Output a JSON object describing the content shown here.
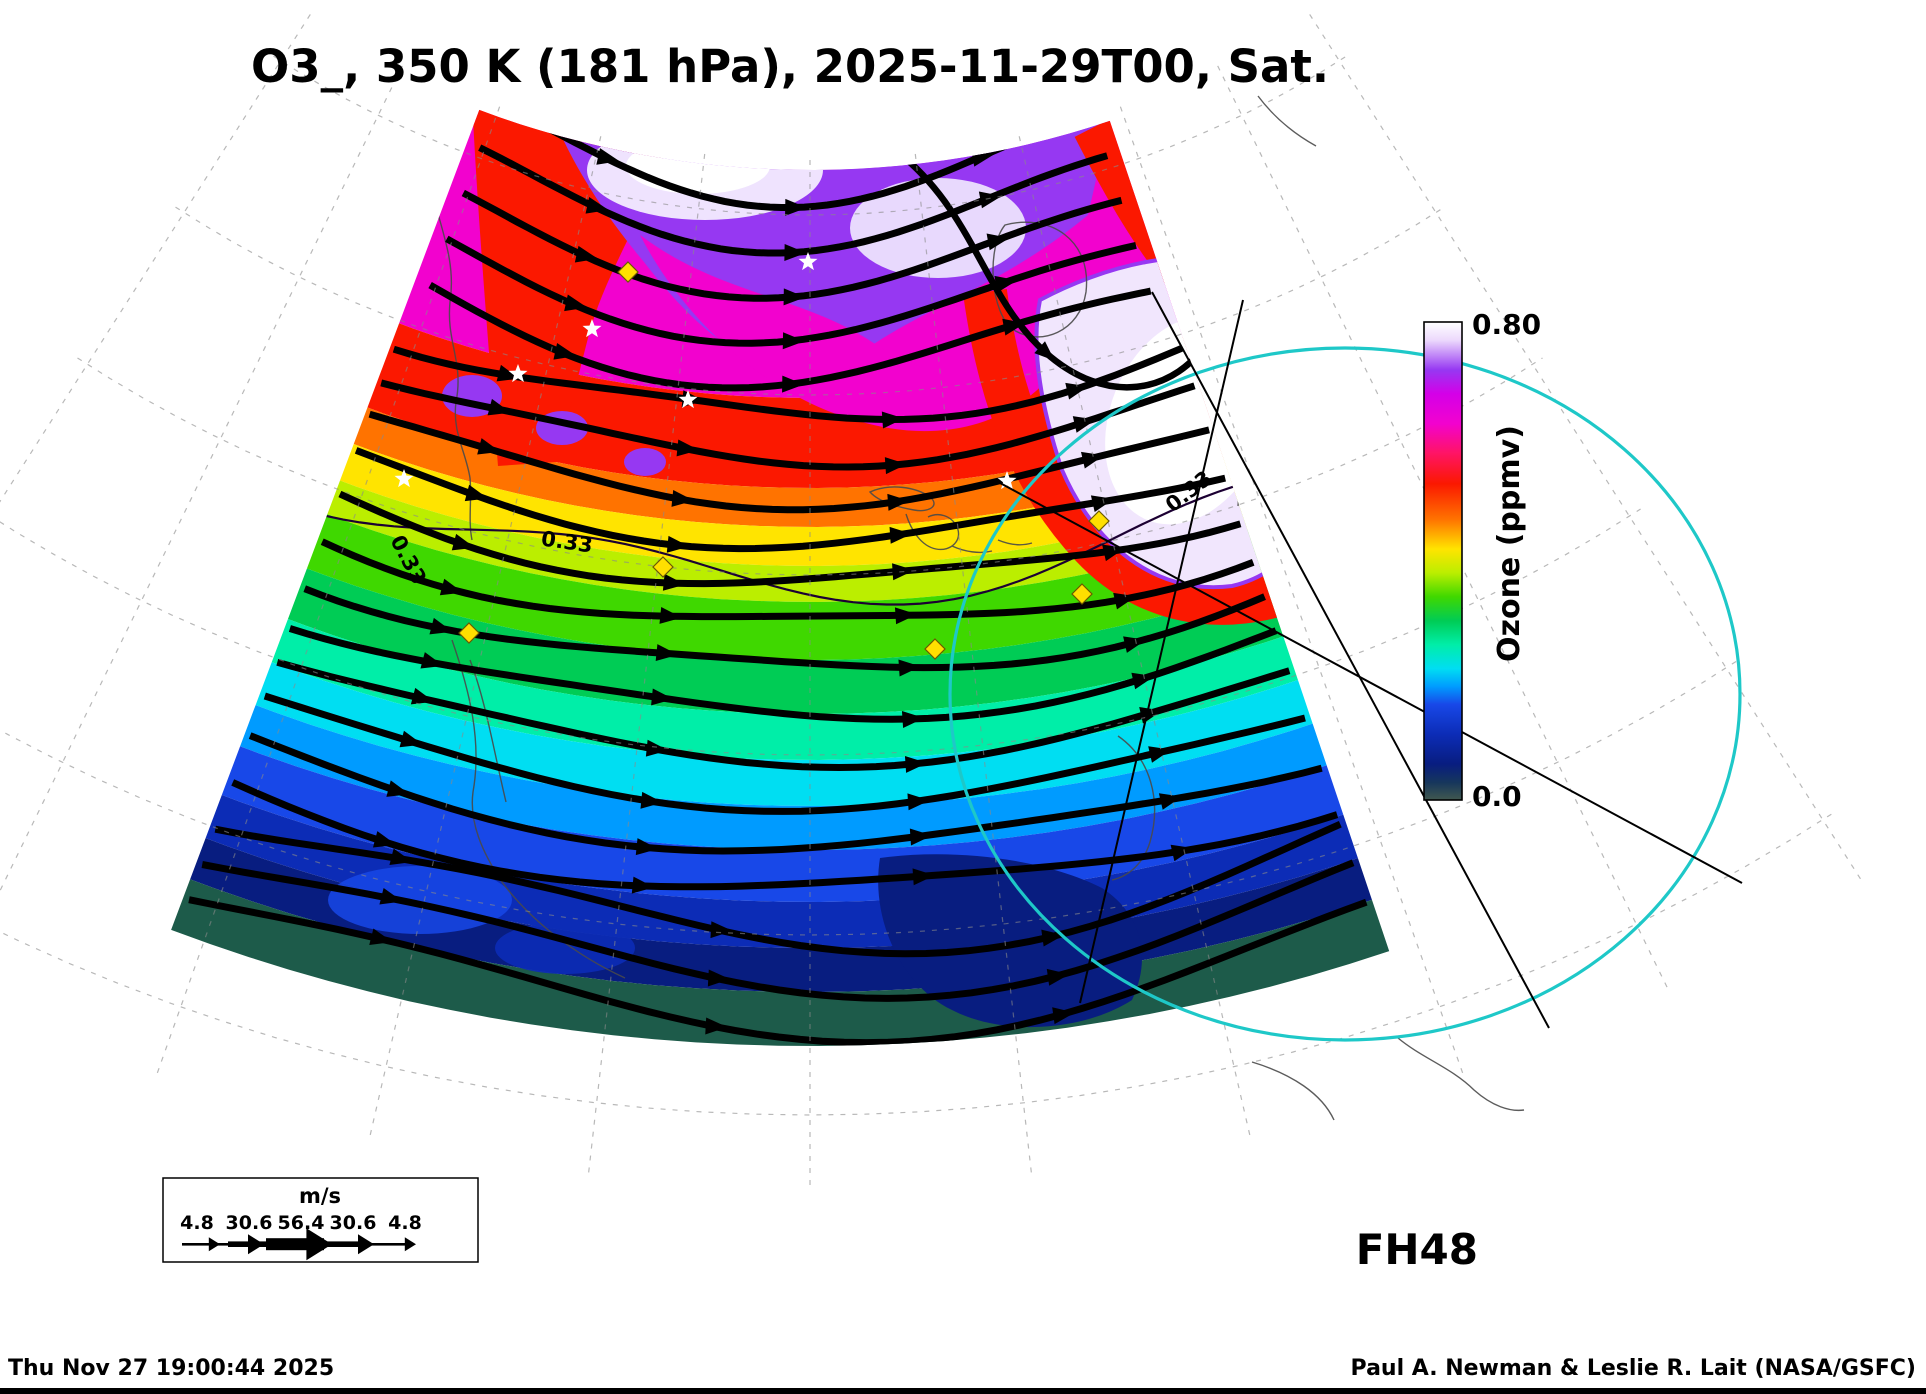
{
  "title": "O3_, 350 K (181 hPa), 2025-11-29T00, Sat.",
  "colorbar": {
    "label": "Ozone (ppmv)",
    "max": "0.80",
    "min": "0.0"
  },
  "contour_label": "0.33",
  "forecast_label": "FH48",
  "wind_legend": {
    "units": "m/s",
    "values": [
      "4.8",
      "30.6",
      "56.4",
      "30.6",
      "4.8"
    ]
  },
  "footer": {
    "timestamp": "Thu Nov 27 19:00:44 2025",
    "credit": "Paul A. Newman & Leslie R. Lait (NASA/GSFC)"
  },
  "chart_data": {
    "type": "heatmap",
    "title": "O3_, 350 K (181 hPa), 2025-11-29T00, Sat.",
    "variable": "O3_",
    "level": "350 K (181 hPa)",
    "valid_time": "2025-11-29T00",
    "valid_day": "Sat.",
    "forecast_hour_label": "FH48",
    "colorbar": {
      "label": "Ozone (ppmv)",
      "min": 0.0,
      "max": 0.8,
      "min_label": "0.0",
      "max_label": "0.80",
      "position": "right"
    },
    "contour_levels_ppmv": [
      0.33
    ],
    "wind_scale_ms": [
      4.8,
      30.6,
      56.4,
      30.6,
      4.8
    ],
    "wind_scale_units": "m/s",
    "generated": "Thu Nov 27 19:00:44 2025",
    "credit": "Paul A. Newman & Leslie R. Lait (NASA/GSFC)",
    "projection": "conic sector over North America with dashed lat-lon graticule",
    "overlays": [
      "black wind streamlines with arrowheads",
      "0.33 ppmv ozone contour",
      "cyan range circle",
      "black cross-section lines",
      "yellow station diamonds",
      "white city stars"
    ],
    "color_scale": [
      {
        "v": 0.0,
        "c": "#41584f"
      },
      {
        "v": 0.03,
        "c": "#16365c"
      },
      {
        "v": 0.06,
        "c": "#081d80"
      },
      {
        "v": 0.11,
        "c": "#0c2cb6"
      },
      {
        "v": 0.16,
        "c": "#1848e8"
      },
      {
        "v": 0.19,
        "c": "#009bff"
      },
      {
        "v": 0.22,
        "c": "#00def2"
      },
      {
        "v": 0.26,
        "c": "#00eea8"
      },
      {
        "v": 0.3,
        "c": "#00cc55"
      },
      {
        "v": 0.34,
        "c": "#3fd800"
      },
      {
        "v": 0.38,
        "c": "#bbee00"
      },
      {
        "v": 0.42,
        "c": "#ffe400"
      },
      {
        "v": 0.47,
        "c": "#ff7300"
      },
      {
        "v": 0.53,
        "c": "#fb1800"
      },
      {
        "v": 0.58,
        "c": "#ff1464"
      },
      {
        "v": 0.63,
        "c": "#f202ce"
      },
      {
        "v": 0.68,
        "c": "#d400e8"
      },
      {
        "v": 0.72,
        "c": "#9638f2"
      },
      {
        "v": 0.77,
        "c": "#ecd9fc"
      },
      {
        "v": 0.8,
        "c": "#ffffff"
      }
    ]
  }
}
